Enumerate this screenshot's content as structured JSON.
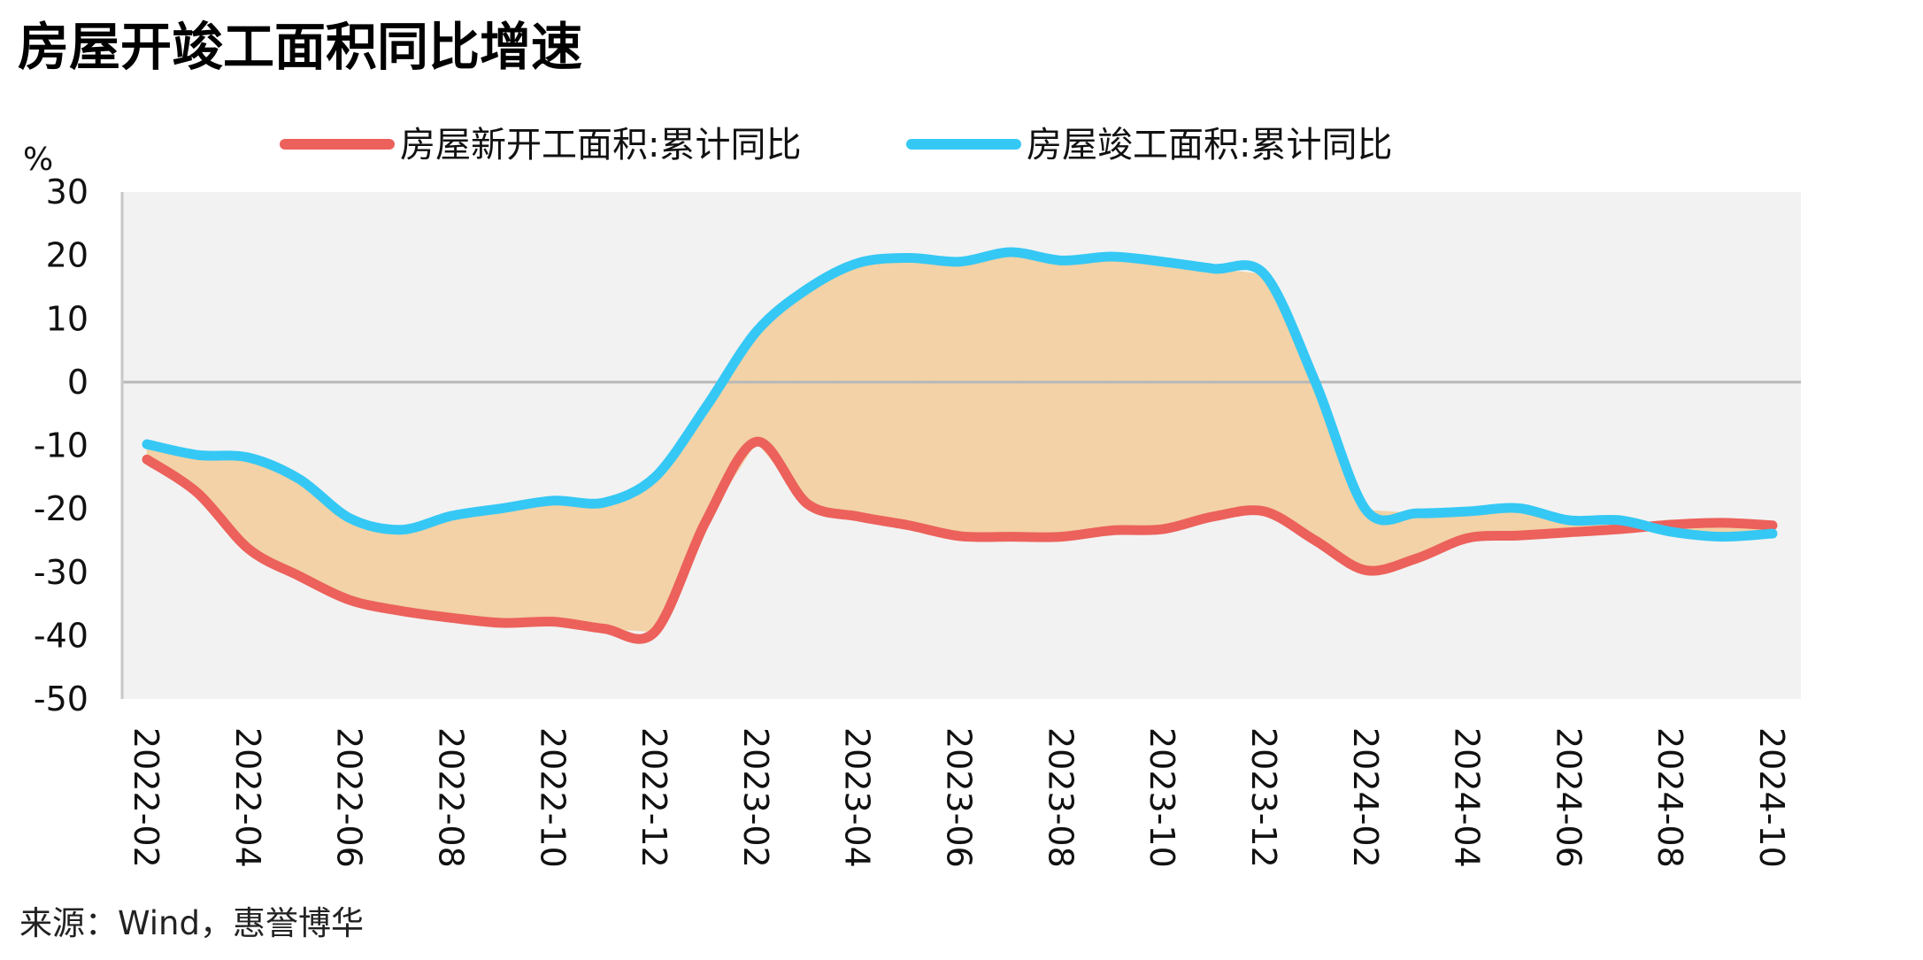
{
  "chart_data": {
    "type": "line",
    "title": "房屋开竣工面积同比增速",
    "ylabel": "%",
    "ylim": [
      -50,
      30
    ],
    "yticks": [
      30,
      20,
      10,
      0,
      -10,
      -20,
      -30,
      -40,
      -50
    ],
    "x_tick_labels": [
      "2022-02",
      "2022-04",
      "2022-06",
      "2022-08",
      "2022-10",
      "2022-12",
      "2023-02",
      "2023-04",
      "2023-06",
      "2023-08",
      "2023-10",
      "2023-12",
      "2024-02",
      "2024-04",
      "2024-06",
      "2024-08",
      "2024-10"
    ],
    "x": [
      "2022-02",
      "2022-03",
      "2022-04",
      "2022-05",
      "2022-06",
      "2022-07",
      "2022-08",
      "2022-09",
      "2022-10",
      "2022-11",
      "2022-12",
      "2023-01",
      "2023-02",
      "2023-03",
      "2023-04",
      "2023-05",
      "2023-06",
      "2023-07",
      "2023-08",
      "2023-09",
      "2023-10",
      "2023-11",
      "2023-12",
      "2024-01",
      "2024-02",
      "2024-03",
      "2024-04",
      "2024-05",
      "2024-06",
      "2024-07",
      "2024-08",
      "2024-09",
      "2024-10"
    ],
    "series": [
      {
        "name": "房屋新开工面积:累计同比",
        "color": "#ec615b",
        "values": [
          -12.2,
          -17.5,
          -26.3,
          -30.6,
          -34.4,
          -36.1,
          -37.2,
          -38.0,
          -37.8,
          -38.9,
          -39.4,
          -22.0,
          -9.4,
          -19.2,
          -21.2,
          -22.6,
          -24.3,
          -24.4,
          -24.4,
          -23.4,
          -23.2,
          -21.2,
          -20.4,
          -25.0,
          -29.7,
          -27.8,
          -24.6,
          -24.2,
          -23.7,
          -23.2,
          -22.5,
          -22.2,
          -22.6
        ]
      },
      {
        "name": "房屋竣工面积:累计同比",
        "color": "#35c8f5",
        "values": [
          -9.8,
          -11.5,
          -11.9,
          -15.3,
          -21.5,
          -23.3,
          -21.1,
          -19.9,
          -18.7,
          -19.0,
          -15.0,
          -4.0,
          8.0,
          14.7,
          18.8,
          19.6,
          19.0,
          20.5,
          19.2,
          19.8,
          19.0,
          17.9,
          17.0,
          0.0,
          -20.2,
          -20.7,
          -20.4,
          -19.9,
          -21.8,
          -21.8,
          -23.6,
          -24.4,
          -23.9
        ]
      }
    ],
    "fill_between_color": "#f2d2a6",
    "plot_background": "#f2f2f2",
    "legend_position": "top-center",
    "grid": false
  },
  "source": "来源：Wind，惠誉博华"
}
